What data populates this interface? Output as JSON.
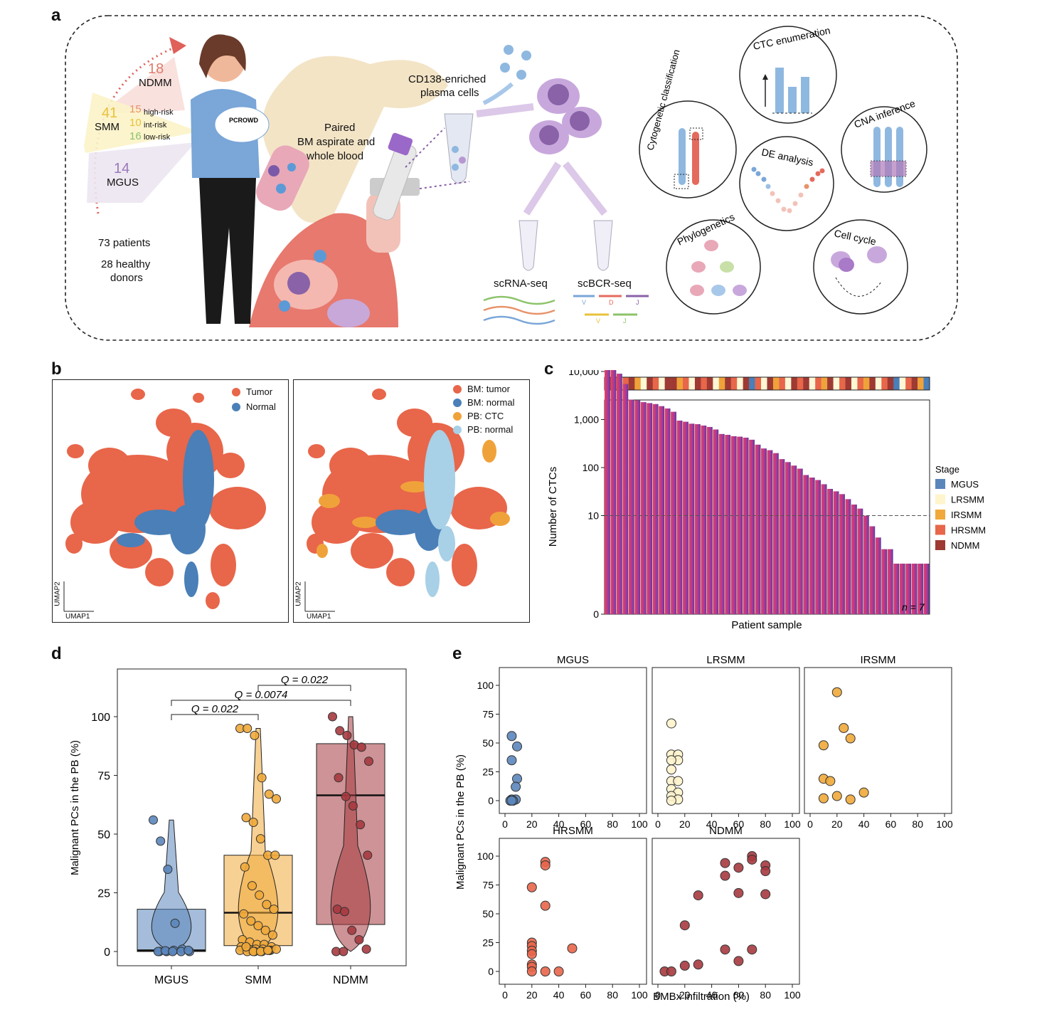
{
  "panels": {
    "a": "a",
    "b": "b",
    "c": "c",
    "d": "d",
    "e": "e"
  },
  "panel_a": {
    "groups": [
      {
        "count": "18",
        "label": "NDMM",
        "color": "#e07a6a"
      },
      {
        "count": "41",
        "label": "SMM",
        "color": "#e8c23a"
      },
      {
        "count": "14",
        "label": "MGUS",
        "color": "#9a78b8"
      }
    ],
    "smm_risk": [
      {
        "count": "15",
        "label": "high-risk",
        "color": "#e8936a"
      },
      {
        "count": "10",
        "label": "int-risk",
        "color": "#e8c23a"
      },
      {
        "count": "16",
        "label": "low-risk",
        "color": "#8cc36a"
      }
    ],
    "patients": "73 patients",
    "donors_line1": "28 healthy",
    "donors_line2": "donors",
    "badge": "PCROWD",
    "paired_line1": "Paired",
    "paired_line2": "BM aspirate and",
    "paired_line3": "whole blood",
    "cd138_line1": "CD138-enriched",
    "cd138_line2": "plasma cells",
    "scrna": "scRNA-seq",
    "scbcr": "scBCR-seq",
    "v": "V",
    "d": "D",
    "j": "J",
    "analyses": {
      "ctc": "CTC enumeration",
      "cyto": "Cytogenetic classification",
      "cna": "CNA inference",
      "de": "DE analysis",
      "phylo": "Phylogenetics",
      "cell": "Cell cycle"
    }
  },
  "panel_b": {
    "left_legend": [
      {
        "label": "Tumor",
        "color": "#e8664a"
      },
      {
        "label": "Normal",
        "color": "#4a7fb8"
      }
    ],
    "right_legend": [
      {
        "label": "BM: tumor",
        "color": "#e8664a"
      },
      {
        "label": "BM: normal",
        "color": "#4a7fb8"
      },
      {
        "label": "PB: CTC",
        "color": "#f0a23a"
      },
      {
        "label": "PB: normal",
        "color": "#a8d0e6"
      }
    ],
    "umap1": "UMAP1",
    "umap2": "UMAP2"
  },
  "chart_data": [
    {
      "id": "c",
      "type": "bar",
      "xlabel": "Patient sample",
      "ylabel": "Number of CTCs",
      "y_ticks": [
        "0",
        "10",
        "100",
        "1,000",
        "10,000"
      ],
      "threshold": 10,
      "annotation": "n = 7",
      "values": [
        28000,
        15000,
        9000,
        5500,
        2600,
        2500,
        2300,
        2200,
        2100,
        1900,
        1700,
        1450,
        950,
        900,
        820,
        800,
        750,
        700,
        620,
        500,
        480,
        450,
        440,
        420,
        380,
        300,
        250,
        230,
        200,
        150,
        130,
        110,
        95,
        70,
        62,
        55,
        45,
        36,
        32,
        28,
        22,
        17,
        14,
        10,
        6,
        3.5,
        2,
        2,
        1,
        1,
        1,
        1,
        1,
        1
      ],
      "stage_bar_colors": [
        "#9e3a33",
        "#e8664a",
        "#fff7d6",
        "#e8664a",
        "#9e3a33",
        "#f0a23a",
        "#fff7d6",
        "#9e3a33",
        "#e8664a",
        "#fff7d6",
        "#9e3a33",
        "#9e3a33",
        "#f0a23a",
        "#e8664a",
        "#fff7d6",
        "#9e3a33",
        "#e8664a",
        "#9e3a33",
        "#fff7d6",
        "#f0a23a",
        "#9e3a33",
        "#e8664a",
        "#fff7d6",
        "#9e3a33",
        "#4a7fb8",
        "#e8664a",
        "#fff7d6",
        "#9e3a33",
        "#f0a23a",
        "#e8664a",
        "#fff7d6",
        "#9e3a33",
        "#e8664a",
        "#9e3a33",
        "#fff7d6",
        "#e8664a",
        "#f0a23a",
        "#9e3a33",
        "#fff7d6",
        "#e8664a",
        "#9e3a33",
        "#fff7d6",
        "#e8664a",
        "#f0a23a",
        "#9e3a33",
        "#fff7d6",
        "#e8664a",
        "#9e3a33",
        "#4a7fb8",
        "#fff7d6",
        "#e8664a",
        "#9e3a33",
        "#f0a23a",
        "#4a7fb8"
      ],
      "legend_title": "Stage",
      "legend": [
        {
          "label": "MGUS",
          "color": "#5b86bb"
        },
        {
          "label": "LRSMM",
          "color": "#fff4cc"
        },
        {
          "label": "IRSMM",
          "color": "#f0a93a"
        },
        {
          "label": "HRSMM",
          "color": "#e8664a"
        },
        {
          "label": "NDMM",
          "color": "#9e3a33"
        }
      ]
    },
    {
      "id": "d",
      "type": "box-violin",
      "ylabel": "Malignant PCs in the PB (%)",
      "categories": [
        "MGUS",
        "SMM",
        "NDMM"
      ],
      "colors": [
        "#5b86bb",
        "#f0a93a",
        "#a63a3f"
      ],
      "ylim": [
        0,
        100
      ],
      "y_ticks": [
        "0",
        "25",
        "50",
        "75",
        "100"
      ],
      "box": [
        {
          "q1": 0,
          "median": 0.5,
          "q3": 18
        },
        {
          "q1": 2.5,
          "median": 16.5,
          "q3": 41
        },
        {
          "q1": 11.5,
          "median": 66.5,
          "q3": 88.5
        }
      ],
      "points": [
        [
          56,
          47,
          35,
          12,
          1,
          0,
          0,
          0,
          0.5,
          0,
          0.5,
          0,
          0.3,
          0
        ],
        [
          95,
          95,
          92,
          74,
          67,
          65,
          57,
          55,
          48,
          41,
          41,
          36,
          28,
          24,
          20,
          18,
          16,
          13,
          11,
          9,
          7,
          5,
          4,
          3,
          3,
          2,
          2,
          1,
          1,
          1,
          0.5,
          0.5,
          0,
          0,
          0,
          0.5,
          1,
          2,
          0,
          0,
          0.5
        ],
        [
          100,
          94,
          92,
          88,
          87,
          81,
          74,
          66,
          62,
          54,
          41,
          18,
          17,
          9,
          5,
          1,
          0,
          0
        ]
      ],
      "comparisons": [
        {
          "label": "Q = 0.022",
          "from": 1,
          "to": 2
        },
        {
          "label": "Q = 0.0074",
          "from": 0,
          "to": 2
        },
        {
          "label": "Q = 0.022",
          "from": 0,
          "to": 1
        }
      ]
    },
    {
      "id": "e",
      "type": "scatter",
      "xlabel": "BMBx infiltration (%)",
      "ylabel": "Malignant PCs in the PB (%)",
      "x_ticks": [
        "0",
        "20",
        "40",
        "60",
        "80",
        "100"
      ],
      "y_ticks": [
        "0",
        "25",
        "50",
        "75",
        "100"
      ],
      "panels": [
        {
          "title": "MGUS",
          "color": "#5b86bb",
          "points": [
            [
              5,
              56
            ],
            [
              9,
              47
            ],
            [
              5,
              35
            ],
            [
              9,
              19
            ],
            [
              8,
              12
            ],
            [
              5,
              1
            ],
            [
              8,
              1
            ],
            [
              4,
              0
            ],
            [
              6,
              0
            ],
            [
              5,
              0
            ]
          ]
        },
        {
          "title": "LRSMM",
          "color": "#fff4cc",
          "points": [
            [
              10,
              67
            ],
            [
              10,
              40
            ],
            [
              15,
              40
            ],
            [
              15,
              35
            ],
            [
              10,
              35
            ],
            [
              10,
              27
            ],
            [
              10,
              17
            ],
            [
              15,
              17
            ],
            [
              10,
              10
            ],
            [
              15,
              7
            ],
            [
              10,
              4
            ],
            [
              15,
              1
            ],
            [
              10,
              0
            ]
          ]
        },
        {
          "title": "IRSMM",
          "color": "#f0a93a",
          "points": [
            [
              20,
              94
            ],
            [
              25,
              63
            ],
            [
              30,
              54
            ],
            [
              10,
              48
            ],
            [
              10,
              19
            ],
            [
              15,
              17
            ],
            [
              40,
              7
            ],
            [
              20,
              4
            ],
            [
              10,
              2
            ],
            [
              30,
              1
            ]
          ]
        },
        {
          "title": "HRSMM",
          "color": "#e8664a",
          "points": [
            [
              30,
              95
            ],
            [
              30,
              92
            ],
            [
              20,
              73
            ],
            [
              30,
              57
            ],
            [
              20,
              25
            ],
            [
              20,
              22
            ],
            [
              50,
              20
            ],
            [
              20,
              18
            ],
            [
              20,
              15
            ],
            [
              20,
              6
            ],
            [
              20,
              4
            ],
            [
              30,
              0
            ],
            [
              40,
              0
            ],
            [
              20,
              0
            ]
          ]
        },
        {
          "title": "NDMM",
          "color": "#a63a3f",
          "points": [
            [
              70,
              100
            ],
            [
              70,
              97
            ],
            [
              50,
              94
            ],
            [
              60,
              90
            ],
            [
              80,
              92
            ],
            [
              80,
              87
            ],
            [
              50,
              83
            ],
            [
              80,
              67
            ],
            [
              60,
              68
            ],
            [
              30,
              66
            ],
            [
              20,
              40
            ],
            [
              50,
              19
            ],
            [
              70,
              19
            ],
            [
              60,
              9
            ],
            [
              30,
              6
            ],
            [
              20,
              5
            ],
            [
              5,
              0
            ],
            [
              10,
              0
            ]
          ]
        }
      ]
    }
  ]
}
